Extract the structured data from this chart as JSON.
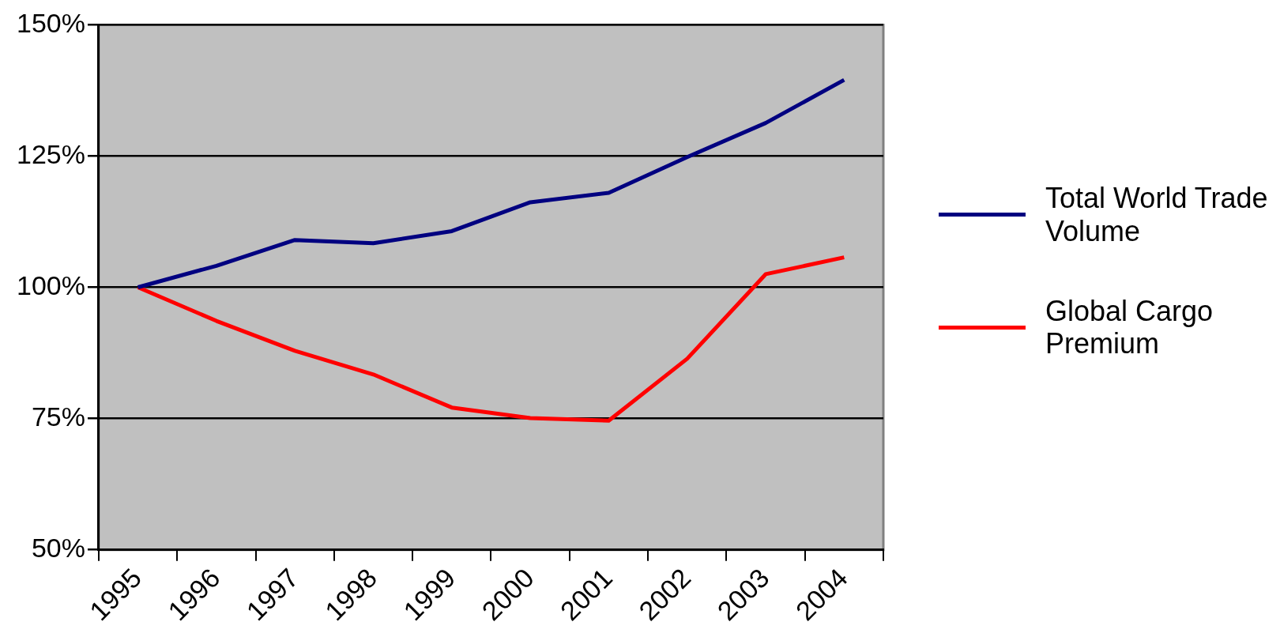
{
  "chart_data": {
    "type": "line",
    "categories": [
      "1995",
      "1996",
      "1997",
      "1998",
      "1999",
      "2000",
      "2001",
      "2002",
      "2003",
      "2004"
    ],
    "series": [
      {
        "name": "Total World Trade Volume",
        "color": "#000080",
        "values": [
          100,
          104.1,
          109,
          108.4,
          110.7,
          116.2,
          118,
          124.8,
          131.3,
          139.5
        ]
      },
      {
        "name": "Global Cargo Premium",
        "color": "#ff0000",
        "values": [
          100,
          93.6,
          87.9,
          83.4,
          77.1,
          75.1,
          74.6,
          86.4,
          102.5,
          105.7
        ]
      }
    ],
    "ylim": [
      50,
      150
    ],
    "yticks": [
      {
        "value": 50,
        "label": "50%"
      },
      {
        "value": 75,
        "label": "75%"
      },
      {
        "value": 100,
        "label": "100%"
      },
      {
        "value": 125,
        "label": "125%"
      },
      {
        "value": 150,
        "label": "150%"
      }
    ],
    "grid": "y",
    "legend": "right",
    "marker": "none",
    "line_style": "solid"
  }
}
